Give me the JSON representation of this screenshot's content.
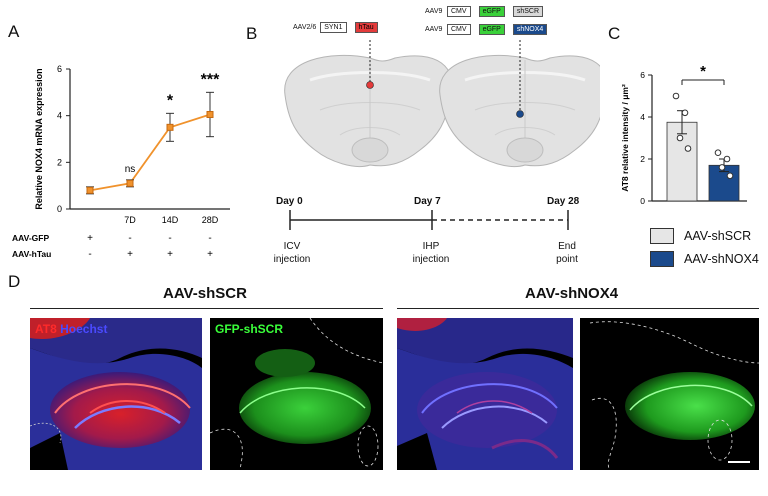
{
  "panels": {
    "A": {
      "letter": "A",
      "chart_data": {
        "type": "line",
        "x": [
          "",
          "7D",
          "14D",
          "28D"
        ],
        "values": [
          0.8,
          1.1,
          3.5,
          4.05
        ],
        "errors": [
          0.15,
          0.15,
          0.6,
          0.95
        ],
        "ylim": [
          0,
          6
        ],
        "yticks": [
          "0",
          "2",
          "4",
          "6"
        ],
        "ylabel": "Relative NOX4 mRNA expression",
        "significance": [
          "",
          "ns",
          "*",
          "***"
        ],
        "color": "#f0922c",
        "rows": [
          {
            "label": "AAV-GFP",
            "marks": [
              "+",
              "-",
              "-",
              "-"
            ]
          },
          {
            "label": "AAV-hTau",
            "marks": [
              "-",
              "+",
              "+",
              "+"
            ]
          }
        ]
      }
    },
    "B": {
      "letter": "B",
      "construct_left": {
        "prefix": "AAV2/6",
        "promoter": "SYN1",
        "gene": "hTau"
      },
      "construct_right_1": {
        "prefix": "AAV9",
        "promoter": "CMV",
        "reporter": "eGFP",
        "gene": "shSCR"
      },
      "construct_right_2": {
        "prefix": "AAV9",
        "promoter": "CMV",
        "reporter": "eGFP",
        "gene": "shNOX4"
      },
      "timeline": {
        "days": [
          "Day 0",
          "Day 7",
          "Day 28"
        ],
        "events": [
          "ICV injection",
          "IHP injection",
          "End point"
        ]
      }
    },
    "C": {
      "letter": "C",
      "chart_data": {
        "type": "bar",
        "categories": [
          "AAV-shSCR",
          "AAV-shNOX4"
        ],
        "values": [
          3.75,
          1.7
        ],
        "errors": [
          0.55,
          0.3
        ],
        "points": [
          [
            5.0,
            4.2,
            3.0,
            2.5
          ],
          [
            2.3,
            2.0,
            1.6,
            1.2
          ]
        ],
        "ylim": [
          0,
          6
        ],
        "yticks": [
          "0",
          "2",
          "4",
          "6"
        ],
        "ylabel": "AT8 relative intensity / μm²",
        "significance": "*",
        "colors": [
          "#e6e6e6",
          "#1b4a8c"
        ],
        "legend": [
          "AAV-shSCR",
          "AAV-shNOX4"
        ]
      }
    },
    "D": {
      "letter": "D",
      "groups": [
        "AAV-shSCR",
        "AAV-shNOX4"
      ],
      "labels": {
        "at8": "AT8",
        "hoechst": "Hoechst",
        "gfp": "GFP-shSCR"
      }
    }
  }
}
